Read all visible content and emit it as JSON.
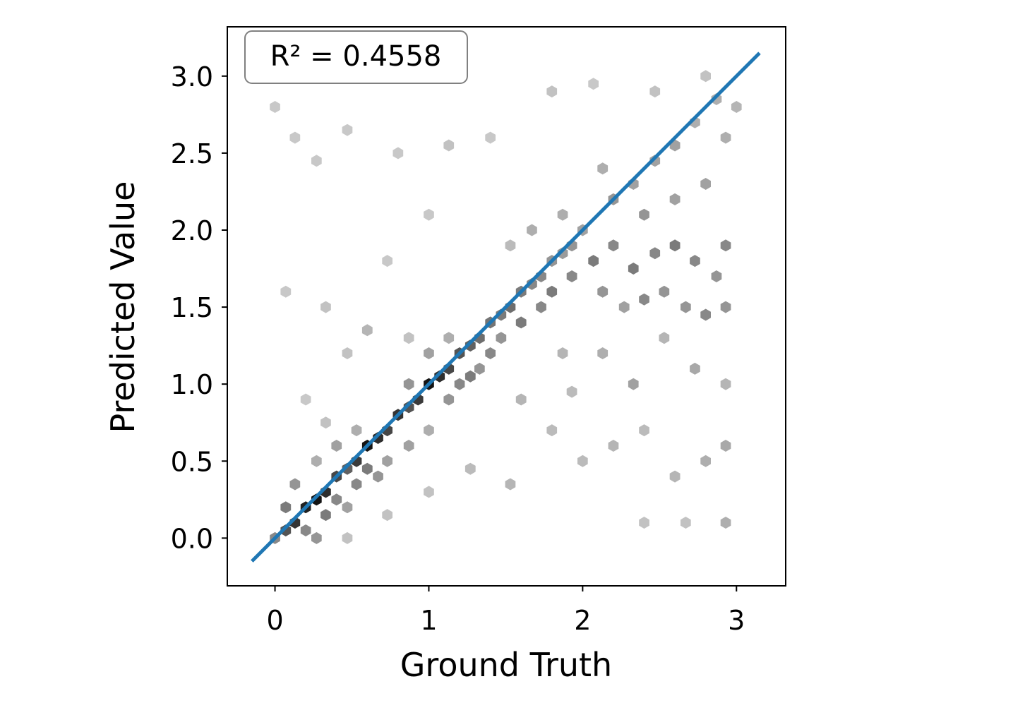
{
  "chart_data": {
    "type": "hexbin",
    "xlabel": "Ground Truth",
    "ylabel": "Predicted Value",
    "annotation": "R² = 0.4558",
    "xlim": [
      -0.31,
      3.32
    ],
    "ylim": [
      -0.31,
      3.32
    ],
    "xticks": [
      0,
      1,
      2,
      3
    ],
    "yticks": [
      {
        "value": 0,
        "label": "0.0"
      },
      {
        "value": 0.5,
        "label": "0.5"
      },
      {
        "value": 1,
        "label": "1.0"
      },
      {
        "value": 1.5,
        "label": "1.5"
      },
      {
        "value": 2,
        "label": "2.0"
      },
      {
        "value": 2.5,
        "label": "2.5"
      },
      {
        "value": 3,
        "label": "3.0"
      }
    ],
    "colors": [
      "#c8c8c8",
      "#141414"
    ],
    "hexbins": {
      "x": [
        0.0,
        0.07,
        0.13,
        0.2,
        0.27,
        0.33,
        0.4,
        0.47,
        0.53,
        0.6,
        0.67,
        0.73,
        0.8,
        0.87,
        0.93,
        1.0,
        1.07,
        1.13,
        1.2,
        1.27,
        1.33,
        1.4,
        1.47,
        1.53,
        1.6,
        1.67,
        1.73,
        1.8,
        1.87,
        1.93,
        2.0,
        0.07,
        0.13,
        0.2,
        0.27,
        0.33,
        0.4,
        0.47,
        0.53,
        0.6,
        0.67,
        0.73,
        0.27,
        0.4,
        0.53,
        0.87,
        1.0,
        1.13,
        1.2,
        1.27,
        0.87,
        1.0,
        1.13,
        1.33,
        1.4,
        1.47,
        1.6,
        1.73,
        1.8,
        1.93,
        2.07,
        2.2,
        2.33,
        2.47,
        2.6,
        2.73,
        2.87,
        2.93,
        2.13,
        2.27,
        2.4,
        2.53,
        2.67,
        2.8,
        2.93,
        2.2,
        2.33,
        2.47,
        2.6,
        2.73,
        2.87,
        2.93,
        2.4,
        2.6,
        2.8,
        2.13,
        1.87,
        1.67,
        1.53,
        0.0,
        0.13,
        0.27,
        0.47,
        0.8,
        1.13,
        1.4,
        1.8,
        2.07,
        2.47,
        2.8,
        3.0,
        1.0,
        0.73,
        0.33,
        0.07,
        0.6,
        0.47,
        0.87,
        0.2,
        0.33,
        1.6,
        1.8,
        2.0,
        2.2,
        2.4,
        2.6,
        2.8,
        2.93,
        2.93,
        2.67,
        2.4,
        1.53,
        1.27,
        1.0,
        0.73,
        0.47,
        2.13,
        2.33,
        2.53,
        2.73,
        2.93,
        1.87,
        1.93
      ],
      "y": [
        0.0,
        0.05,
        0.1,
        0.2,
        0.25,
        0.3,
        0.4,
        0.45,
        0.5,
        0.6,
        0.65,
        0.7,
        0.8,
        0.85,
        0.9,
        1.0,
        1.05,
        1.1,
        1.2,
        1.25,
        1.3,
        1.4,
        1.45,
        1.5,
        1.6,
        1.65,
        1.7,
        1.8,
        1.85,
        1.9,
        2.0,
        0.2,
        0.35,
        0.05,
        0.0,
        0.15,
        0.25,
        0.2,
        0.35,
        0.45,
        0.4,
        0.5,
        0.5,
        0.6,
        0.7,
        0.6,
        0.7,
        0.9,
        1.0,
        1.05,
        1.0,
        1.2,
        1.3,
        1.1,
        1.2,
        1.3,
        1.4,
        1.5,
        1.6,
        1.7,
        1.8,
        1.9,
        1.75,
        1.85,
        1.9,
        1.8,
        1.7,
        1.9,
        1.6,
        1.5,
        1.55,
        1.6,
        1.5,
        1.45,
        1.5,
        2.2,
        2.3,
        2.45,
        2.55,
        2.7,
        2.85,
        2.6,
        2.1,
        2.2,
        2.3,
        2.4,
        2.1,
        2.0,
        1.9,
        2.8,
        2.6,
        2.45,
        2.65,
        2.5,
        2.55,
        2.6,
        2.9,
        2.95,
        2.9,
        3.0,
        2.8,
        2.1,
        1.8,
        1.5,
        1.6,
        1.35,
        1.2,
        1.3,
        0.9,
        0.75,
        0.9,
        0.7,
        0.5,
        0.6,
        0.7,
        0.4,
        0.5,
        0.6,
        0.1,
        0.1,
        0.1,
        0.35,
        0.45,
        0.3,
        0.15,
        0.0,
        1.2,
        1.0,
        1.3,
        1.1,
        1.0,
        1.2,
        0.95
      ],
      "counts": [
        12,
        20,
        25,
        28,
        30,
        26,
        22,
        18,
        24,
        30,
        26,
        22,
        25,
        20,
        24,
        30,
        26,
        22,
        20,
        18,
        16,
        15,
        14,
        16,
        14,
        12,
        12,
        10,
        9,
        10,
        8,
        14,
        10,
        12,
        10,
        14,
        12,
        8,
        12,
        14,
        10,
        8,
        6,
        8,
        6,
        8,
        6,
        10,
        12,
        14,
        10,
        8,
        6,
        10,
        12,
        10,
        14,
        12,
        14,
        12,
        14,
        12,
        14,
        12,
        14,
        12,
        10,
        12,
        10,
        8,
        12,
        10,
        10,
        12,
        10,
        10,
        8,
        8,
        8,
        6,
        6,
        6,
        10,
        8,
        8,
        6,
        6,
        6,
        4,
        2,
        2,
        2,
        2,
        2,
        3,
        2,
        3,
        2,
        3,
        3,
        5,
        2,
        2,
        3,
        2,
        5,
        3,
        3,
        2,
        3,
        5,
        4,
        4,
        5,
        4,
        5,
        6,
        7,
        6,
        3,
        3,
        5,
        4,
        3,
        3,
        3,
        6,
        8,
        5,
        7,
        5,
        5,
        4
      ]
    },
    "fit_line": {
      "x": [
        -0.15,
        3.15
      ],
      "y": [
        -0.15,
        3.15
      ],
      "color": "#1f77b4"
    }
  }
}
